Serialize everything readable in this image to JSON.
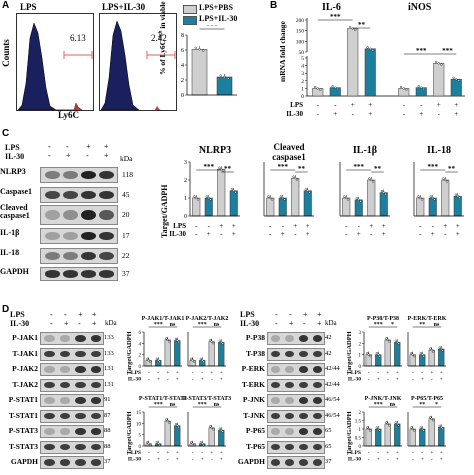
{
  "panels": {
    "A": "A",
    "B": "B",
    "C": "C",
    "D": "D"
  },
  "colors": {
    "pbs_gray": "#cfcfcf",
    "il30_teal": "#1d7f9e",
    "flow_fill": "#1a1f5e",
    "gate": "#e06060"
  },
  "panelA": {
    "flow1_title": "LPS",
    "flow2_title": "LPS+IL-30",
    "flow1_pct": "6.13",
    "flow2_pct": "2.42",
    "y_axis": "Counts",
    "x_axis": "Ly6C",
    "legend": [
      "LPS+PBS",
      "LPS+IL-30"
    ],
    "bar_ylabel_line1": "% of Ly6C",
    "bar_ylabel_sup": "high",
    "bar_ylabel_line2": "in viable cells",
    "sig": "***"
  },
  "panelB": {
    "gene1": "IL-6",
    "gene2": "iNOS",
    "ylabel": "mRNA fold change",
    "sig": [
      "***",
      "**",
      "***",
      "***"
    ],
    "row_lps": "LPS",
    "row_il30": "IL-30",
    "treat_lps": [
      "-",
      "-",
      "+",
      "+",
      "-",
      "-",
      "+",
      "+"
    ],
    "treat_il30": [
      "-",
      "+",
      "-",
      "+",
      "-",
      "+",
      "-",
      "+"
    ]
  },
  "panelC": {
    "treat_labels": [
      "LPS",
      "IL-30"
    ],
    "lps": [
      "-",
      "-",
      "+",
      "+"
    ],
    "il30": [
      "-",
      "+",
      "-",
      "+"
    ],
    "kda": "kDa",
    "rows": [
      {
        "label": "NLRP3",
        "kda": "118"
      },
      {
        "label": "Caspase1",
        "kda": "45"
      },
      {
        "label": "Cleaved caspase1",
        "kda": "20"
      },
      {
        "label": "IL-1β",
        "kda": "17"
      },
      {
        "label": "IL-18",
        "kda": "22"
      },
      {
        "label": "GAPDH",
        "kda": "37"
      }
    ],
    "chart_titles": [
      "NLRP3",
      "Cleaved caspase1",
      "IL-1β",
      "IL-18"
    ],
    "ylabel": "Target/GADPH",
    "sig": [
      "***",
      "**",
      "***",
      "**",
      "***",
      "**",
      "***",
      "**"
    ],
    "bar_lps": [
      "-",
      "-",
      "+",
      "+"
    ],
    "bar_il30": [
      "-",
      "+",
      "-",
      "+"
    ]
  },
  "panelD": {
    "left_rows": [
      {
        "label": "P-JAK1",
        "kda": "133"
      },
      {
        "label": "T-JAK1",
        "kda": "133"
      },
      {
        "label": "P-JAK2",
        "kda": "131"
      },
      {
        "label": "T-JAK2",
        "kda": "131"
      },
      {
        "label": "P-STAT1",
        "kda": "91"
      },
      {
        "label": "T-STAT1",
        "kda": "87"
      },
      {
        "label": "P-STAT3",
        "kda": "88"
      },
      {
        "label": "T-STAT3",
        "kda": "88"
      },
      {
        "label": "GAPDH",
        "kda": "37"
      }
    ],
    "right_rows": [
      {
        "label": "P-P38",
        "kda": "42"
      },
      {
        "label": "T-P38",
        "kda": "42"
      },
      {
        "label": "P-ERK",
        "kda": "42/44"
      },
      {
        "label": "T-ERK",
        "kda": "42/44"
      },
      {
        "label": "P-JNK",
        "kda": "46/54"
      },
      {
        "label": "T-JNK",
        "kda": "46/54"
      },
      {
        "label": "P-P65",
        "kda": "65"
      },
      {
        "label": "T-P65",
        "kda": "65"
      },
      {
        "label": "GAPDH",
        "kda": "37"
      }
    ],
    "treat_labels": [
      "LPS",
      "IL-30"
    ],
    "lps": [
      "-",
      "-",
      "+",
      "+"
    ],
    "il30": [
      "-",
      "+",
      "-",
      "+"
    ],
    "kda": "kDa",
    "ylabel": "Target/GADPH",
    "chart_titles": [
      "P-JAK1/T-JAK1",
      "P-JAK2/T-JAK2",
      "P-STAT1/T-STAT1",
      "P-STAT3/T-STAT3",
      "P-P38/T-P38",
      "P-ERK/T-ERK",
      "P-JNK/T-JNK",
      "P-P65/T-P65"
    ],
    "sig": [
      [
        "***",
        "ns"
      ],
      [
        "***",
        "ns"
      ],
      [
        "***",
        "ns"
      ],
      [
        "***",
        "ns"
      ],
      [
        "***",
        "*"
      ],
      [
        "**",
        "ns"
      ],
      [
        "***",
        "ns"
      ],
      [
        "**",
        "*"
      ]
    ]
  },
  "chart_data": [
    {
      "type": "bar",
      "title": "",
      "ylabel": "% of Ly6C high in viable cells",
      "categories": [
        "LPS+PBS",
        "LPS+IL-30"
      ],
      "values": [
        6.1,
        2.4
      ],
      "ylim": [
        0,
        8
      ],
      "yticks": [
        0,
        2,
        4,
        6,
        8
      ]
    },
    {
      "type": "bar",
      "title": "IL-6",
      "ylabel": "mRNA fold change",
      "categories": [
        "-/-",
        "-/+",
        "+/-",
        "+/+"
      ],
      "values": [
        1,
        1.1,
        160,
        65
      ]
    },
    {
      "type": "bar",
      "title": "iNOS",
      "ylabel": "mRNA fold change",
      "categories": [
        "-/-",
        "-/+",
        "+/-",
        "+/+"
      ],
      "values": [
        1,
        1.1,
        4.3,
        2.2
      ]
    },
    {
      "type": "bar",
      "title": "NLRP3",
      "ylabel": "Target/GADPH",
      "categories": [
        "-/-",
        "-/+",
        "+/-",
        "+/+"
      ],
      "values": [
        1.0,
        1.0,
        2.6,
        1.4
      ],
      "ylim": [
        0,
        3
      ]
    },
    {
      "type": "bar",
      "title": "Cleaved caspase1",
      "categories": [
        "-/-",
        "-/+",
        "+/-",
        "+/+"
      ],
      "values": [
        1.0,
        1.0,
        2.1,
        1.4
      ]
    },
    {
      "type": "bar",
      "title": "IL-1β",
      "categories": [
        "-/-",
        "-/+",
        "+/-",
        "+/+"
      ],
      "values": [
        1.0,
        0.9,
        2.0,
        1.3
      ]
    },
    {
      "type": "bar",
      "title": "IL-18",
      "categories": [
        "-/-",
        "-/+",
        "+/-",
        "+/+"
      ],
      "values": [
        1.0,
        1.0,
        2.0,
        1.1
      ]
    },
    {
      "type": "bar",
      "title": "P-JAK1/T-JAK1",
      "categories": [
        "-/-",
        "-/+",
        "+/-",
        "+/+"
      ],
      "values": [
        1.0,
        1.0,
        4.6,
        4.5
      ],
      "ylim": [
        0,
        6
      ]
    },
    {
      "type": "bar",
      "title": "P-JAK2/T-JAK2",
      "categories": [
        "-/-",
        "-/+",
        "+/-",
        "+/+"
      ],
      "values": [
        1.0,
        1.0,
        4.3,
        4.2
      ]
    },
    {
      "type": "bar",
      "title": "P-STAT1/T-STAT1",
      "categories": [
        "-/-",
        "-/+",
        "+/-",
        "+/+"
      ],
      "values": [
        1.0,
        1.0,
        11,
        9
      ],
      "ylim": [
        0,
        15
      ]
    },
    {
      "type": "bar",
      "title": "P-STAT3/T-STAT3",
      "categories": [
        "-/-",
        "-/+",
        "+/-",
        "+/+"
      ],
      "values": [
        1.0,
        1.0,
        8,
        7
      ]
    },
    {
      "type": "bar",
      "title": "P-P38/T-P38",
      "categories": [
        "-/-",
        "-/+",
        "+/-",
        "+/+"
      ],
      "values": [
        1.0,
        1.0,
        2.3,
        2.1
      ],
      "ylim": [
        0,
        3
      ]
    },
    {
      "type": "bar",
      "title": "P-ERK/T-ERK",
      "categories": [
        "-/-",
        "-/+",
        "+/-",
        "+/+"
      ],
      "values": [
        1.0,
        1.0,
        1.4,
        1.5
      ]
    },
    {
      "type": "bar",
      "title": "P-JNK/T-JNK",
      "categories": [
        "-/-",
        "-/+",
        "+/-",
        "+/+"
      ],
      "values": [
        1.0,
        1.0,
        1.3,
        1.3
      ],
      "ylim": [
        0,
        2
      ]
    },
    {
      "type": "bar",
      "title": "P-P65/T-P65",
      "categories": [
        "-/-",
        "-/+",
        "+/-",
        "+/+"
      ],
      "values": [
        1.0,
        1.0,
        1.6,
        1.1
      ]
    }
  ]
}
